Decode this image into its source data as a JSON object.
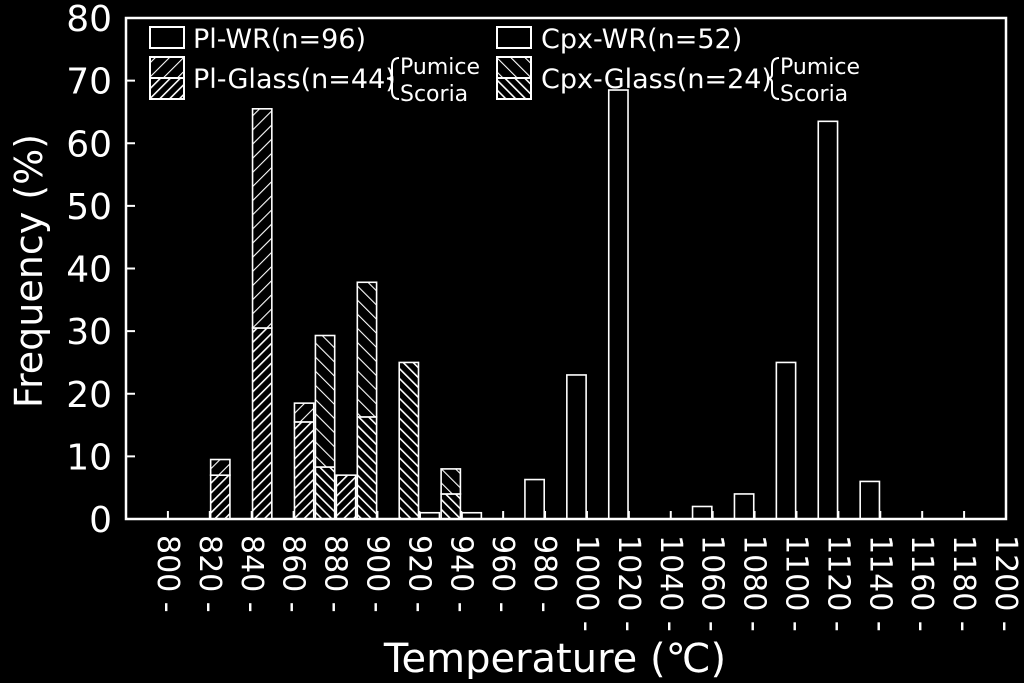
{
  "chart_data": {
    "type": "bar",
    "title": "",
    "xlabel": "Temperature (℃)",
    "ylabel": "Frequency (%)",
    "ylim": [
      0,
      80
    ],
    "yticks": [
      "0",
      "10",
      "20",
      "30",
      "40",
      "50",
      "60",
      "70",
      "80"
    ],
    "categories": [
      "800 -",
      "820 -",
      "840 -",
      "860 -",
      "880 -",
      "900 -",
      "920 -",
      "940 -",
      "960 -",
      "980 -",
      "1000 -",
      "1020 -",
      "1040 -",
      "1060 -",
      "1080 -",
      "1100 -",
      "1120 -",
      "1140 -",
      "1160 -",
      "1180 -",
      "1200 -"
    ],
    "series": [
      {
        "name": "Pl-WR(n=96)",
        "group": "pl",
        "kind": "wr",
        "values": [
          0,
          0,
          0,
          0,
          0,
          0,
          0,
          1,
          1,
          0,
          0,
          0,
          0,
          0,
          0,
          0,
          0,
          0,
          0,
          0,
          0
        ]
      },
      {
        "name": "Pl-Glass(n=44) Pumice",
        "group": "pl",
        "kind": "glass-pumice",
        "values": [
          0,
          0,
          2.5,
          35,
          3,
          0,
          0,
          0,
          0,
          0,
          0,
          0,
          0,
          0,
          0,
          0,
          0,
          0,
          0,
          0,
          0
        ]
      },
      {
        "name": "Pl-Glass(n=44) Scoria",
        "group": "pl",
        "kind": "glass-scoria",
        "values": [
          0,
          0,
          7,
          30.5,
          15.5,
          7,
          0,
          0,
          0,
          0,
          0,
          0,
          0,
          0,
          0,
          0,
          0,
          0,
          0,
          0,
          0
        ]
      },
      {
        "name": "Cpx-WR(n=52)",
        "group": "cpx",
        "kind": "wr",
        "values": [
          0,
          0,
          0,
          0,
          0,
          0,
          0,
          0,
          0,
          6.3,
          23,
          68.5,
          0,
          2,
          4,
          25,
          63.5,
          6,
          0,
          0,
          0
        ]
      },
      {
        "name": "Cpx-Glass(n=24) Pumice",
        "group": "cpx",
        "kind": "glass-pumice",
        "values": [
          0,
          0,
          0,
          0,
          21,
          21.5,
          0,
          4,
          0,
          0,
          0,
          0,
          0,
          0,
          0,
          0,
          0,
          0,
          0,
          0,
          0
        ]
      },
      {
        "name": "Cpx-Glass(n=24) Scoria",
        "group": "cpx",
        "kind": "glass-scoria",
        "values": [
          0,
          0,
          0,
          0,
          8.3,
          16.3,
          25,
          4,
          0,
          0,
          0,
          0,
          0,
          0,
          0,
          0,
          0,
          0,
          0,
          0,
          0
        ]
      }
    ],
    "legend": {
      "position": "top",
      "entries": {
        "pl_wr": "Pl-WR(n=96)",
        "pl_glass": "Pl-Glass(n=44)",
        "cpx_wr": "Cpx-WR(n=52)",
        "cpx_glass": "Cpx-Glass(n=24)",
        "pumice": "Pumice",
        "scoria": "Scoria"
      }
    }
  },
  "colors": {
    "background": "#000000",
    "foreground": "#ffffff"
  }
}
